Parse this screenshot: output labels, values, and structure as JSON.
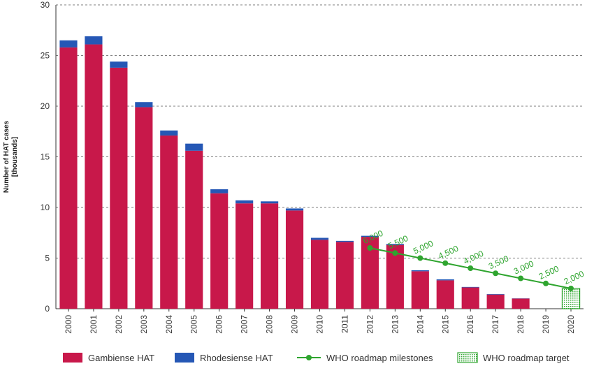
{
  "chart_data": {
    "type": "bar",
    "ylabel": "Number of HAT cases\n[thousands]",
    "ylim": [
      0,
      30
    ],
    "yticks": [
      0,
      5,
      10,
      15,
      20,
      25,
      30
    ],
    "grid": "horizontal-dashed",
    "legend_position": "bottom",
    "categories": [
      "2000",
      "2001",
      "2002",
      "2003",
      "2004",
      "2005",
      "2006",
      "2007",
      "2008",
      "2009",
      "2010",
      "2011",
      "2012",
      "2013",
      "2014",
      "2015",
      "2016",
      "2017",
      "2018",
      "2019",
      "2020"
    ],
    "series": [
      {
        "name": "Gambiense HAT",
        "color": "#c8184a",
        "stacked": true,
        "values": [
          25.8,
          26.1,
          23.8,
          19.9,
          17.1,
          15.6,
          11.4,
          10.4,
          10.4,
          9.7,
          6.8,
          6.6,
          7.1,
          6.3,
          3.7,
          2.8,
          2.1,
          1.4,
          1.0,
          null,
          null
        ]
      },
      {
        "name": "Rhodesiense HAT",
        "color": "#2557b5",
        "stacked": true,
        "values": [
          0.7,
          0.8,
          0.6,
          0.5,
          0.5,
          0.7,
          0.4,
          0.3,
          0.2,
          0.2,
          0.2,
          0.1,
          0.1,
          0.1,
          0.1,
          0.1,
          0.05,
          0.05,
          0.02,
          null,
          null
        ]
      },
      {
        "name": "WHO roadmap milestones",
        "type": "line",
        "color": "#2fa52f",
        "x": [
          "2012",
          "2013",
          "2014",
          "2015",
          "2016",
          "2017",
          "2018",
          "2019",
          "2020"
        ],
        "values": [
          6.0,
          5.5,
          5.0,
          4.5,
          4.0,
          3.5,
          3.0,
          2.5,
          2.0
        ],
        "labels": [
          "6,000",
          "5,500",
          "5,000",
          "4,500",
          "4,000",
          "3,500",
          "3,000",
          "2,500",
          "2,000"
        ]
      },
      {
        "name": "WHO roadmap target",
        "type": "box",
        "color": "#2fa52f",
        "x": "2020",
        "value": 2.0
      }
    ]
  }
}
